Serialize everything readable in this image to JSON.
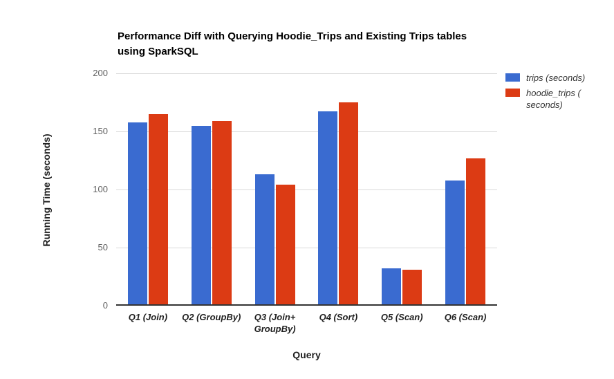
{
  "chart_data": {
    "type": "bar",
    "title": "Performance Diff with Querying Hoodie_Trips and Existing Trips tables\nusing SparkSQL",
    "xlabel": "Query",
    "ylabel": "Running Time (seconds)",
    "categories": [
      "Q1 (Join)",
      "Q2 (GroupBy)",
      "Q3 (Join+\nGroupBy)",
      "Q4 (Sort)",
      "Q5 (Scan)",
      "Q6 (Scan)"
    ],
    "series": [
      {
        "name": "trips (seconds)",
        "color": "#3A6BD0",
        "values": [
          158,
          155,
          113,
          167,
          32,
          108
        ]
      },
      {
        "name": "hoodie_trips (\nseconds)",
        "color": "#DC3B14",
        "values": [
          165,
          159,
          104,
          175,
          31,
          127
        ]
      }
    ],
    "ylim": [
      0,
      200
    ],
    "yticks": [
      0,
      50,
      100,
      150,
      200
    ],
    "grid": true,
    "legend_position": "right",
    "colors": {
      "grid": "#D9D9D9",
      "axis": "#333333",
      "tick_text": "#616161",
      "category_text": "#1F1F1F",
      "title_text": "#000000",
      "background": "#FFFFFF"
    }
  }
}
